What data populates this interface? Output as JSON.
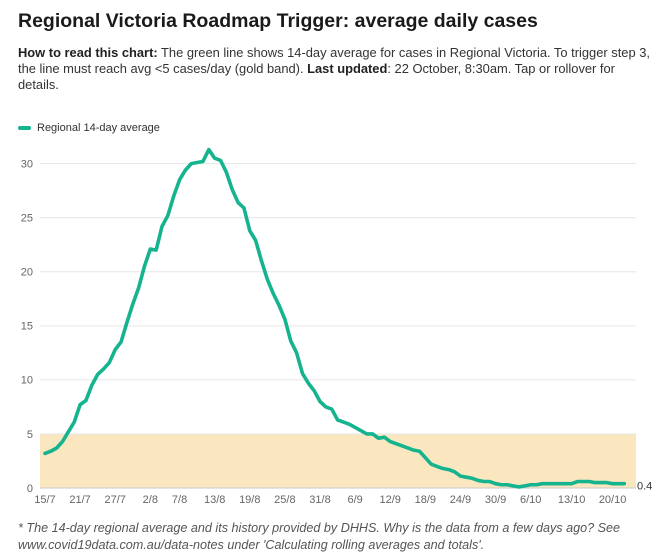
{
  "chart_data": {
    "type": "line",
    "title": "Regional Victoria Roadmap Trigger: average daily cases",
    "subtitle": {
      "lead_label": "How to read this chart:",
      "lead_text": " The green line shows 14-day average for cases in Regional Victoria. To trigger step 3, the line must reach avg <5 cases/day (gold band). ",
      "updated_label": "Last updated",
      "updated_text": ": 22 October, 8:30am. Tap or rollover for details."
    },
    "legend": "top-left",
    "series": [
      {
        "name": "Regional 14-day average",
        "color": "#15b38e",
        "x": [
          0,
          1,
          2,
          3,
          4,
          5,
          6,
          7,
          8,
          9,
          10,
          11,
          12,
          13,
          14,
          15,
          16,
          17,
          18,
          19,
          20,
          21,
          22,
          23,
          24,
          25,
          26,
          27,
          28,
          29,
          30,
          31,
          32,
          33,
          34,
          35,
          36,
          37,
          38,
          39,
          40,
          41,
          42,
          43,
          44,
          45,
          46,
          47,
          48,
          49,
          50,
          51,
          52,
          53,
          54,
          55,
          56,
          57,
          58,
          59,
          60,
          61,
          62,
          63,
          64,
          65,
          66,
          67,
          68,
          69,
          70,
          71,
          72,
          73,
          74,
          75,
          76,
          77,
          78,
          79,
          80,
          81,
          82,
          83,
          84,
          85,
          86,
          87,
          88,
          89,
          90,
          91,
          92,
          93,
          94,
          95,
          96,
          97,
          98,
          99
        ],
        "values": [
          3.2,
          3.4,
          3.7,
          4.3,
          5.2,
          6.1,
          7.7,
          8.1,
          9.5,
          10.5,
          11.0,
          11.6,
          12.8,
          13.5,
          15.3,
          17.0,
          18.5,
          20.5,
          22.1,
          22.0,
          24.2,
          25.2,
          27.0,
          28.5,
          29.4,
          30.0,
          30.1,
          30.2,
          31.3,
          30.5,
          30.3,
          29.2,
          27.6,
          26.4,
          25.9,
          23.8,
          22.9,
          21.0,
          19.3,
          18.0,
          16.9,
          15.6,
          13.6,
          12.5,
          10.6,
          9.7,
          9.0,
          8.0,
          7.5,
          7.3,
          6.3,
          6.1,
          5.9,
          5.6,
          5.3,
          5.0,
          5.0,
          4.6,
          4.7,
          4.3,
          4.1,
          3.9,
          3.7,
          3.5,
          3.4,
          2.8,
          2.2,
          2.0,
          1.8,
          1.7,
          1.5,
          1.1,
          1.0,
          0.9,
          0.7,
          0.6,
          0.6,
          0.4,
          0.3,
          0.3,
          0.2,
          0.1,
          0.2,
          0.3,
          0.3,
          0.4,
          0.4,
          0.4,
          0.4,
          0.4,
          0.4,
          0.6,
          0.6,
          0.6,
          0.5,
          0.5,
          0.5,
          0.4,
          0.4,
          0.4
        ]
      }
    ],
    "end_label": "0.4",
    "x_ticks": [
      {
        "label": "15/7",
        "x": 0
      },
      {
        "label": "21/7",
        "x": 6
      },
      {
        "label": "27/7",
        "x": 12
      },
      {
        "label": "2/8",
        "x": 18
      },
      {
        "label": "7/8",
        "x": 23
      },
      {
        "label": "13/8",
        "x": 29
      },
      {
        "label": "19/8",
        "x": 35
      },
      {
        "label": "25/8",
        "x": 41
      },
      {
        "label": "31/8",
        "x": 47
      },
      {
        "label": "6/9",
        "x": 53
      },
      {
        "label": "12/9",
        "x": 59
      },
      {
        "label": "18/9",
        "x": 65
      },
      {
        "label": "24/9",
        "x": 71
      },
      {
        "label": "30/9",
        "x": 77
      },
      {
        "label": "6/10",
        "x": 83
      },
      {
        "label": "13/10",
        "x": 90
      },
      {
        "label": "20/10",
        "x": 97
      }
    ],
    "y_ticks": [
      0,
      5,
      10,
      15,
      20,
      25,
      30
    ],
    "xlim": [
      -0.85,
      101
    ],
    "ylim": [
      0,
      32
    ],
    "grid": true,
    "bands": [
      {
        "from": 0,
        "to": 5,
        "color": "#fbe7bf"
      }
    ],
    "footnote": "* The 14-day regional average and its history provided by DHHS. Why is the data from a few days ago? See www.covid19data.com.au/data-notes under 'Calculating rolling averages and totals'."
  }
}
